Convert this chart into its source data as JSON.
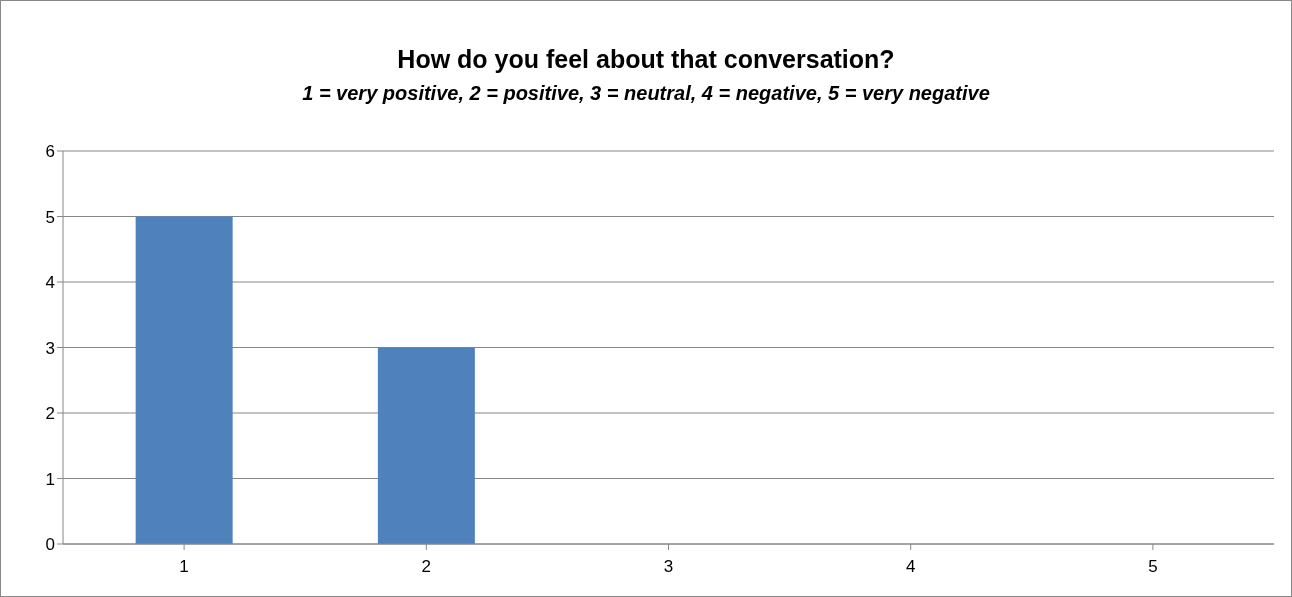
{
  "chart_data": {
    "type": "bar",
    "title": "How do you feel about that conversation?",
    "subtitle": "1 = very positive, 2 = positive, 3 = neutral, 4 = negative, 5 = very negative",
    "categories": [
      "1",
      "2",
      "3",
      "4",
      "5"
    ],
    "values": [
      5,
      3,
      0,
      0,
      0
    ],
    "color": "#4f81bd",
    "ylim": [
      0,
      6
    ],
    "yticks": [
      0,
      1,
      2,
      3,
      4,
      5,
      6
    ],
    "grid": "y"
  }
}
